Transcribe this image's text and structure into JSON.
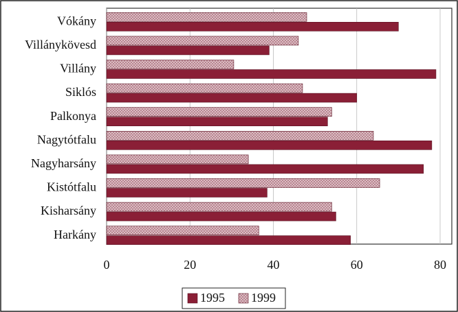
{
  "chart_data": {
    "type": "hbar",
    "categories": [
      "Vókány",
      "Villánykövesd",
      "Villány",
      "Siklós",
      "Palkonya",
      "Nagytótfalu",
      "Nagyharsány",
      "Kistótfalu",
      "Kisharsány",
      "Harkány"
    ],
    "series": [
      {
        "name": "1995",
        "color": "#8a1f36",
        "values": [
          70,
          39,
          79,
          60,
          53,
          78,
          76,
          38.5,
          55,
          58.5
        ]
      },
      {
        "name": "1999",
        "color": "#c89aa4",
        "values": [
          48,
          46,
          30.5,
          47,
          54,
          64,
          34,
          65.5,
          54,
          36.5
        ]
      }
    ],
    "xlim": [
      0,
      80
    ],
    "xticks": [
      0,
      20,
      40,
      60,
      80
    ],
    "grid": true
  }
}
